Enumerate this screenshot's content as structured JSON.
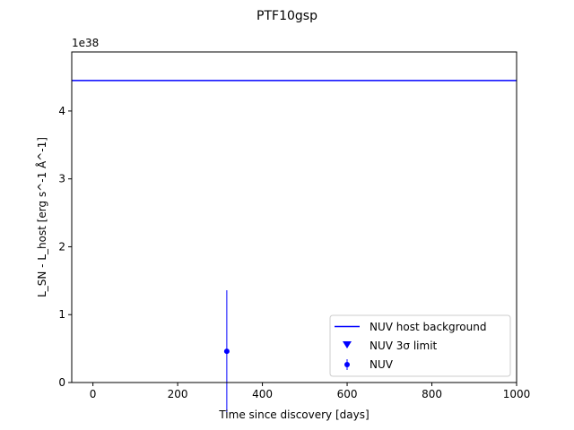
{
  "chart_data": {
    "type": "scatter",
    "title": "PTF10gsp",
    "xlabel": "Time since discovery [days]",
    "ylabel": "L_SN - L_host [erg s^-1 Å^-1]",
    "y_offset_label": "1e38",
    "xlim": [
      -50,
      1000
    ],
    "ylim": [
      0,
      4.87
    ],
    "x_ticks": [
      0,
      200,
      400,
      600,
      800,
      1000
    ],
    "y_ticks": [
      0,
      1,
      2,
      3,
      4
    ],
    "grid": false,
    "legend_position": "lower right",
    "host_background": {
      "name": "NUV host background",
      "value": 4.45,
      "color": "#0000ff"
    },
    "series": [
      {
        "name": "NUV 3σ limit",
        "marker": "triangle-down",
        "color": "#0000ff",
        "points": []
      },
      {
        "name": "NUV",
        "marker": "circle",
        "color": "#0000ff",
        "points": [
          {
            "x": 316,
            "y": 0.46,
            "yerr": 0.9
          }
        ]
      }
    ]
  }
}
